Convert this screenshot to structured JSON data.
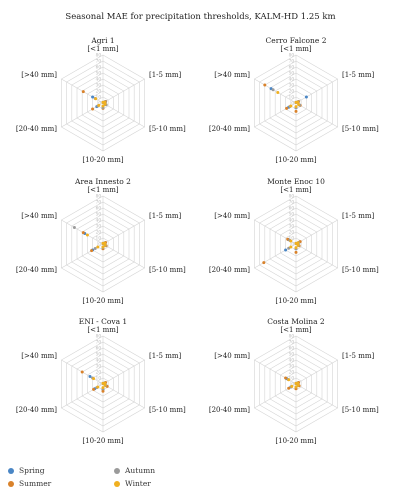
{
  "title": "Seasonal MAE for precipitation thresholds, KALM-HD 1.25 km",
  "colors": {
    "Spring": "#4a86c5",
    "Summer": "#d9822b",
    "Autumn": "#9a9a9a",
    "Winter": "#f0b020",
    "grid": "#d4d4d4",
    "tick": "#b5b5b5"
  },
  "legend": [
    "Spring",
    "Summer",
    "Autumn",
    "Winter"
  ],
  "chart_data": [
    {
      "type": "radar",
      "title": "Agri 1",
      "axes": [
        "[<1 mm]",
        "[1-5 mm]",
        "[5-10 mm]",
        "[10-20 mm]",
        "[20-40 mm]",
        "[>40 mm]"
      ],
      "ticks": [
        0,
        10,
        20,
        30,
        40,
        50,
        60,
        70,
        80
      ],
      "rlim": [
        0,
        80
      ],
      "series": [
        {
          "name": "Spring",
          "values": [
            1,
            5,
            4,
            6,
            12,
            20
          ]
        },
        {
          "name": "Summer",
          "values": [
            1,
            5,
            5,
            9,
            20,
            38
          ]
        },
        {
          "name": "Autumn",
          "values": [
            1,
            4,
            6,
            8,
            10,
            15
          ]
        },
        {
          "name": "Winter",
          "values": [
            1,
            3,
            4,
            5,
            8,
            14
          ]
        }
      ]
    },
    {
      "type": "radar",
      "title": "Cerro Falcone 2",
      "axes": [
        "[<1 mm]",
        "[1-5 mm]",
        "[5-10 mm]",
        "[10-20 mm]",
        "[20-40 mm]",
        "[>40 mm]"
      ],
      "ticks": [
        0,
        10,
        20,
        30,
        40,
        50,
        60,
        70,
        80
      ],
      "rlim": [
        0,
        80
      ],
      "series": [
        {
          "name": "Spring",
          "values": [
            1,
            20,
            6,
            8,
            14,
            48
          ]
        },
        {
          "name": "Summer",
          "values": [
            1,
            5,
            8,
            14,
            18,
            60
          ]
        },
        {
          "name": "Autumn",
          "values": [
            1,
            4,
            7,
            8,
            12,
            44
          ]
        },
        {
          "name": "Winter",
          "values": [
            1,
            3,
            5,
            6,
            10,
            35
          ]
        }
      ]
    },
    {
      "type": "radar",
      "title": "Area Innesto 2",
      "axes": [
        "[<1 mm]",
        "[1-5 mm]",
        "[5-10 mm]",
        "[10-20 mm]",
        "[20-40 mm]",
        "[>40 mm]"
      ],
      "ticks": [
        0,
        10,
        20,
        30,
        40,
        50,
        60,
        70,
        80
      ],
      "rlim": [
        0,
        80
      ],
      "series": [
        {
          "name": "Spring",
          "values": [
            1,
            4,
            4,
            5,
            20,
            35
          ]
        },
        {
          "name": "Summer",
          "values": [
            1,
            5,
            6,
            8,
            22,
            38
          ]
        },
        {
          "name": "Autumn",
          "values": [
            1,
            3,
            5,
            6,
            15,
            55
          ]
        },
        {
          "name": "Winter",
          "values": [
            1,
            3,
            4,
            5,
            10,
            30
          ]
        }
      ]
    },
    {
      "type": "radar",
      "title": "Monte Enoc 10",
      "axes": [
        "[<1 mm]",
        "[1-5 mm]",
        "[5-10 mm]",
        "[10-20 mm]",
        "[20-40 mm]",
        "[>40 mm]"
      ],
      "ticks": [
        0,
        10,
        20,
        30,
        40,
        50,
        60,
        70,
        80
      ],
      "rlim": [
        0,
        80
      ],
      "series": [
        {
          "name": "Spring",
          "values": [
            1,
            6,
            5,
            8,
            20,
            15
          ]
        },
        {
          "name": "Summer",
          "values": [
            1,
            8,
            6,
            14,
            62,
            16
          ]
        },
        {
          "name": "Autumn",
          "values": [
            1,
            5,
            5,
            8,
            14,
            12
          ]
        },
        {
          "name": "Winter",
          "values": [
            1,
            4,
            4,
            6,
            10,
            10
          ]
        }
      ]
    },
    {
      "type": "radar",
      "title": "ENI - Cova 1",
      "axes": [
        "[<1 mm]",
        "[1-5 mm]",
        "[5-10 mm]",
        "[10-20 mm]",
        "[20-40 mm]",
        "[>40 mm]"
      ],
      "ticks": [
        0,
        10,
        20,
        30,
        40,
        50,
        60,
        70,
        80
      ],
      "rlim": [
        0,
        80
      ],
      "series": [
        {
          "name": "Spring",
          "values": [
            1,
            4,
            6,
            9,
            16,
            25
          ]
        },
        {
          "name": "Summer",
          "values": [
            1,
            5,
            8,
            12,
            18,
            40
          ]
        },
        {
          "name": "Autumn",
          "values": [
            1,
            3,
            5,
            8,
            12,
            20
          ]
        },
        {
          "name": "Winter",
          "values": [
            1,
            3,
            4,
            6,
            10,
            18
          ]
        }
      ]
    },
    {
      "type": "radar",
      "title": "Costa Molina 2",
      "axes": [
        "[<1 mm]",
        "[1-5 mm]",
        "[5-10 mm]",
        "[10-20 mm]",
        "[20-40 mm]",
        "[>40 mm]"
      ],
      "ticks": [
        0,
        10,
        20,
        30,
        40,
        50,
        60,
        70,
        80
      ],
      "rlim": [
        0,
        80
      ],
      "series": [
        {
          "name": "Spring",
          "values": [
            1,
            4,
            5,
            6,
            10,
            18
          ]
        },
        {
          "name": "Summer",
          "values": [
            1,
            5,
            6,
            8,
            14,
            20
          ]
        },
        {
          "name": "Autumn",
          "values": [
            1,
            3,
            4,
            5,
            9,
            15
          ]
        },
        {
          "name": "Winter",
          "values": [
            1,
            3,
            4,
            5,
            8,
            14
          ]
        }
      ]
    }
  ]
}
